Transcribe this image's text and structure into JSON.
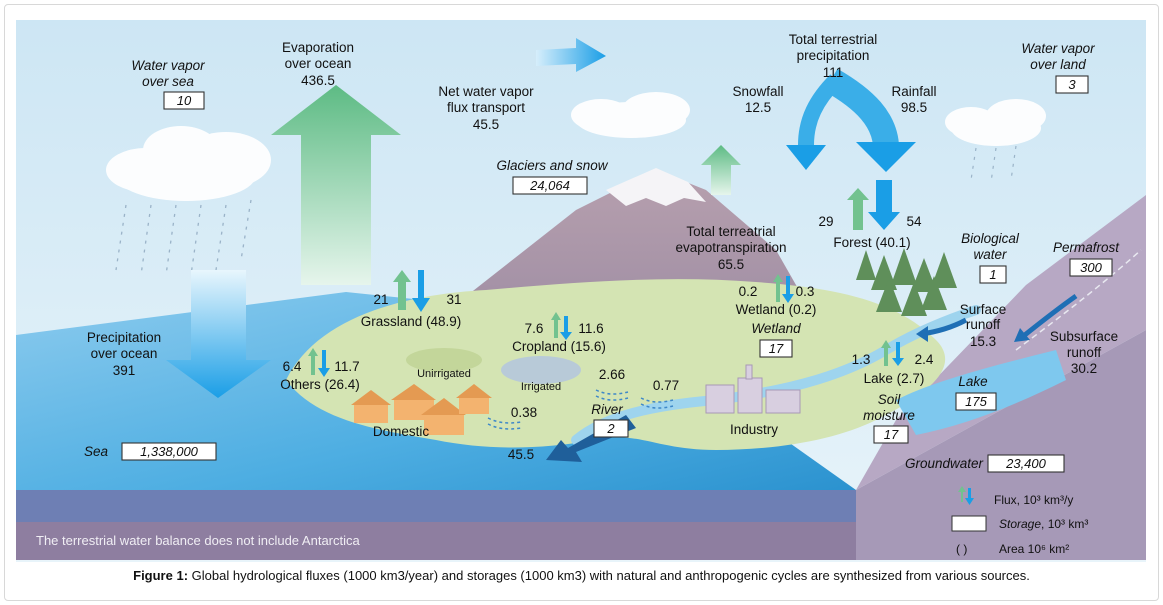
{
  "caption": {
    "prefix": "Figure 1:",
    "text": " Global hydrological fluxes (1000 km3/year) and storages (1000 km3) with natural and anthropogenic cycles are synthesized from various sources."
  },
  "diagram": {
    "water_vapor_sea": {
      "label1": "Water vapor",
      "label2": "over sea",
      "value": "10"
    },
    "evaporation_ocean": {
      "label1": "Evaporation",
      "label2": "over ocean",
      "value": "436.5"
    },
    "net_vapor_flux": {
      "label1": "Net water vapor",
      "label2": "flux transport",
      "value": "45.5"
    },
    "total_precip": {
      "label1": "Total terrestrial",
      "label2": "precipitation",
      "value": "111"
    },
    "snowfall": {
      "label": "Snowfall",
      "value": "12.5"
    },
    "rainfall": {
      "label": "Rainfall",
      "value": "98.5"
    },
    "water_vapor_land": {
      "label1": "Water vapor",
      "label2": "over land",
      "value": "3"
    },
    "glaciers": {
      "label": "Glaciers and snow",
      "value": "24,064"
    },
    "evapotranspiration": {
      "label1": "Total terreatrial",
      "label2": "evapotranspiration",
      "value": "65.5"
    },
    "forest": {
      "up": "29",
      "down": "54",
      "label": "Forest (40.1)"
    },
    "biological_water": {
      "label1": "Biological",
      "label2": "water",
      "value": "1"
    },
    "permafrost": {
      "label": "Permafrost",
      "value": "300"
    },
    "grassland": {
      "up": "21",
      "down": "31",
      "label": "Grassland (48.9)"
    },
    "cropland": {
      "up": "7.6",
      "down": "11.6",
      "label": "Cropland (15.6)"
    },
    "wetland_flux": {
      "up": "0.2",
      "down": "0.3",
      "label": "Wetland (0.2)"
    },
    "wetland_storage": {
      "label": "Wetland",
      "value": "17"
    },
    "surface_runoff": {
      "label1": "Surface",
      "label2": "runoff",
      "value": "15.3"
    },
    "subsurface_runoff": {
      "label1": "Subsurface",
      "label2": "runoff",
      "value": "30.2"
    },
    "precip_ocean": {
      "label1": "Precipitation",
      "label2": "over ocean",
      "value": "391"
    },
    "others": {
      "up": "6.4",
      "down": "11.7",
      "label": "Others (26.4)"
    },
    "unirrigated": "Unirrigated",
    "irrigated": "Irrigated",
    "flow_266": "2.66",
    "flow_077": "0.77",
    "flow_038": "0.38",
    "lake_flux": {
      "up": "1.3",
      "down": "2.4",
      "label": "Lake (2.7)"
    },
    "lake_storage": {
      "label": "Lake",
      "value": "175"
    },
    "soil_moisture": {
      "label1": "Soil",
      "label2": "moisture",
      "value": "17"
    },
    "river": {
      "label": "River",
      "value": "2",
      "discharge": "45.5"
    },
    "domestic": "Domestic",
    "industry": "Industry",
    "sea": {
      "label": "Sea",
      "value": "1,338,000"
    },
    "groundwater": {
      "label": "Groundwater",
      "value": "23,400"
    },
    "footer_note": "The terrestrial water balance does not include Antarctica",
    "legend": {
      "flux": "Flux, 10³ km³/y",
      "storage_italic": "Storage",
      "storage_rest": ", 10³ km³",
      "area_symbol": "(      )",
      "area": "Area 10⁶ km²"
    }
  },
  "colors": {
    "sky": "#d6ecf7",
    "ocean": "#3fa7de",
    "sea_front": "#6f86b8",
    "ground": "#a79ab8",
    "land": "#cfe0b0",
    "mountain": "#a7909e",
    "flux_down": "#1aa0e6",
    "flux_up": "#6cc08c"
  }
}
